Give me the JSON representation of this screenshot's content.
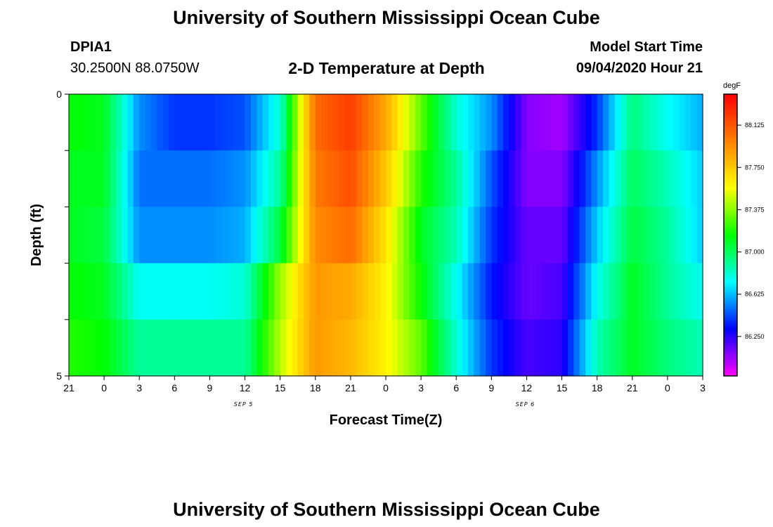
{
  "header": {
    "title": "University of Southern Mississippi Ocean Cube",
    "station": "DPIA1",
    "coords": "30.2500N 88.0750W",
    "plot_title": "2-D Temperature at Depth",
    "model_label": "Model Start Time",
    "model_time": "09/04/2020 Hour 21"
  },
  "footer": {
    "title": "University of Southern Mississippi Ocean Cube"
  },
  "chart_data": {
    "type": "heatmap",
    "xlabel": "Forecast Time(Z)",
    "ylabel": "Depth (ft)",
    "x_tick_labels": [
      "21",
      "0",
      "3",
      "6",
      "9",
      "12",
      "15",
      "18",
      "21",
      "0",
      "3",
      "6",
      "9",
      "12",
      "15",
      "18",
      "21",
      "0",
      "3"
    ],
    "day_labels": [
      {
        "label": "SEP 5",
        "at_tick": 5
      },
      {
        "label": "SEP 6",
        "at_tick": 13
      }
    ],
    "y_tick_labels": [
      "0",
      "5"
    ],
    "y_range": [
      0,
      5
    ],
    "x_range_hours": [
      0,
      54
    ],
    "colorbar": {
      "unit": "degF",
      "min": 85.9,
      "max": 88.4,
      "tick_values": [
        "88.125",
        "87.750",
        "87.375",
        "87.000",
        "86.625",
        "86.250"
      ],
      "colors": [
        "#ff00ff",
        "#8000ff",
        "#0000ff",
        "#0080ff",
        "#00ffff",
        "#00ff80",
        "#00ff00",
        "#80ff00",
        "#ffff00",
        "#ffc000",
        "#ff8000",
        "#ff4000",
        "#ff0000"
      ]
    },
    "time_hours": [
      0,
      3,
      6,
      9,
      12,
      15,
      18,
      21,
      24,
      27,
      30,
      33,
      36,
      39,
      42,
      45,
      48,
      51,
      54
    ],
    "depth_rows": [
      "0-1 ft",
      "1-2 ft",
      "2-3 ft",
      "3-4 ft",
      "4-5 ft"
    ],
    "temperatures_degF": [
      [
        87.15,
        87.1,
        86.55,
        86.4,
        86.4,
        86.45,
        86.8,
        88.05,
        88.2,
        87.85,
        87.3,
        86.8,
        86.55,
        86.1,
        86.05,
        86.4,
        86.95,
        86.75,
        86.6
      ],
      [
        87.1,
        87.1,
        86.5,
        86.5,
        86.5,
        86.55,
        86.9,
        88.0,
        88.15,
        87.75,
        87.2,
        86.9,
        86.45,
        86.1,
        86.1,
        86.55,
        87.0,
        86.85,
        86.65
      ],
      [
        87.1,
        87.05,
        86.55,
        86.55,
        86.55,
        86.6,
        87.05,
        87.95,
        88.05,
        87.65,
        87.1,
        86.85,
        86.4,
        86.15,
        86.15,
        86.65,
        87.05,
        86.9,
        86.65
      ],
      [
        87.15,
        87.1,
        86.75,
        86.75,
        86.75,
        86.8,
        87.4,
        87.9,
        87.85,
        87.6,
        87.15,
        86.75,
        86.35,
        86.15,
        86.2,
        86.75,
        87.1,
        86.9,
        86.75
      ],
      [
        87.2,
        87.15,
        86.9,
        86.9,
        86.9,
        86.9,
        87.45,
        87.9,
        87.8,
        87.6,
        87.3,
        86.8,
        86.4,
        86.2,
        86.25,
        86.85,
        87.1,
        86.95,
        86.85
      ]
    ]
  }
}
